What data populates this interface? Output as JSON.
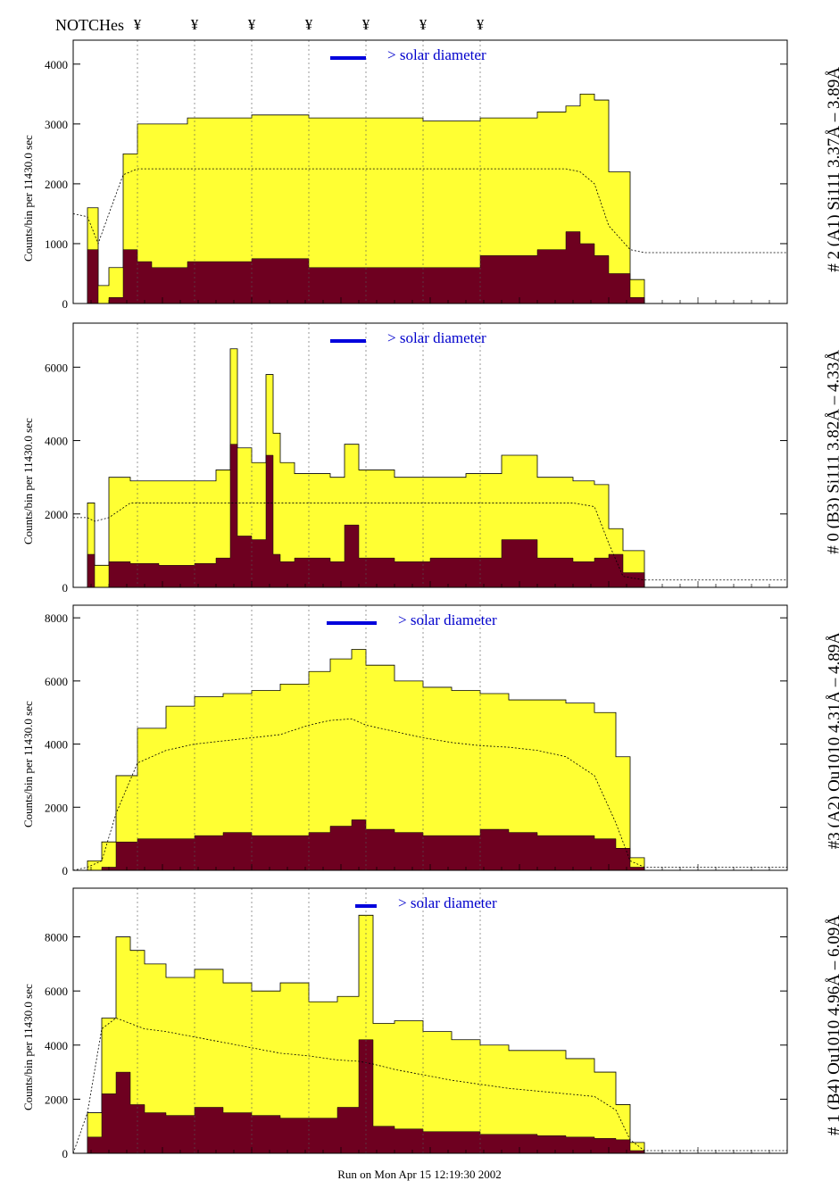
{
  "header": {
    "notch_title": "NOTCHes",
    "notch_symbol": "¥",
    "notch_positions": [
      0.09,
      0.17,
      0.25,
      0.33,
      0.41,
      0.49,
      0.57
    ]
  },
  "footer": {
    "run_on": "Run on Mon Apr 15 12:19:30 2002"
  },
  "colors": {
    "total": "#ffff33",
    "line": "#6e0020",
    "solar": "#0000dd",
    "edge": "#000000"
  },
  "chart_data": [
    {
      "type": "area",
      "label": "# 2 (A1) Si111  3.37Å – 3.89Å",
      "ylabel": "Counts/bin per  11430.0 sec",
      "solar_text": "> solar diameter",
      "ylim": [
        0,
        4400
      ],
      "yticks": [
        0,
        1000,
        2000,
        3000,
        4000
      ],
      "ytick_labels": [
        "0",
        "1000",
        "2000",
        "3000",
        "4000"
      ],
      "x": [
        0.0,
        0.02,
        0.035,
        0.05,
        0.07,
        0.09,
        0.11,
        0.16,
        0.25,
        0.33,
        0.41,
        0.49,
        0.57,
        0.65,
        0.69,
        0.71,
        0.73,
        0.75,
        0.78,
        0.8
      ],
      "total": [
        0,
        1600,
        300,
        600,
        2500,
        3000,
        3000,
        3100,
        3150,
        3100,
        3100,
        3050,
        3100,
        3200,
        3300,
        3500,
        3400,
        2200,
        400,
        0
      ],
      "line": [
        0,
        900,
        0,
        100,
        900,
        700,
        600,
        700,
        750,
        600,
        600,
        600,
        800,
        900,
        1200,
        1000,
        800,
        500,
        100,
        0
      ],
      "model": [
        1500,
        1450,
        1000,
        1500,
        2150,
        2250,
        2250,
        2250,
        2250,
        2250,
        2250,
        2250,
        2250,
        2250,
        2250,
        2200,
        2000,
        1300,
        900,
        850
      ],
      "solar_bar": [
        0.36,
        0.41
      ]
    },
    {
      "type": "area",
      "label": "# 0 (B3) Si111  3.82Å – 4.33Å",
      "ylabel": "Counts/bin per  11430.0 sec",
      "solar_text": "> solar diameter",
      "ylim": [
        0,
        7200
      ],
      "yticks": [
        0,
        2000,
        4000,
        6000
      ],
      "ytick_labels": [
        "0",
        "2000",
        "4000",
        "6000"
      ],
      "x": [
        0.0,
        0.02,
        0.03,
        0.05,
        0.08,
        0.12,
        0.17,
        0.2,
        0.22,
        0.23,
        0.25,
        0.27,
        0.28,
        0.29,
        0.31,
        0.36,
        0.38,
        0.4,
        0.45,
        0.5,
        0.55,
        0.6,
        0.65,
        0.7,
        0.73,
        0.75,
        0.77,
        0.8
      ],
      "total": [
        0,
        2300,
        600,
        3000,
        2900,
        2900,
        2900,
        3200,
        6500,
        3800,
        3400,
        5800,
        4200,
        3400,
        3100,
        3000,
        3900,
        3200,
        3000,
        3000,
        3100,
        3600,
        3000,
        2900,
        2800,
        1600,
        1000,
        0
      ],
      "line": [
        0,
        900,
        0,
        700,
        650,
        600,
        650,
        800,
        3900,
        1400,
        1300,
        3600,
        900,
        700,
        800,
        700,
        1700,
        800,
        700,
        800,
        800,
        1300,
        800,
        700,
        800,
        900,
        400,
        0
      ],
      "model": [
        1900,
        1900,
        1800,
        1900,
        2300,
        2300,
        2300,
        2300,
        2300,
        2300,
        2300,
        2300,
        2300,
        2300,
        2300,
        2300,
        2300,
        2300,
        2300,
        2300,
        2300,
        2300,
        2300,
        2300,
        2200,
        1200,
        300,
        200
      ],
      "solar_bar": [
        0.36,
        0.41
      ]
    },
    {
      "type": "area",
      "label": "#3 (A2) Qu1010  4.31Å – 4.89Å",
      "ylabel": "Counts/bin per  11430.0 sec",
      "solar_text": "> solar diameter",
      "ylim": [
        0,
        8400
      ],
      "yticks": [
        0,
        2000,
        4000,
        6000,
        8000
      ],
      "ytick_labels": [
        "0",
        "2000",
        "4000",
        "6000",
        "8000"
      ],
      "x": [
        0.0,
        0.02,
        0.04,
        0.06,
        0.09,
        0.13,
        0.17,
        0.21,
        0.25,
        0.29,
        0.33,
        0.36,
        0.39,
        0.41,
        0.45,
        0.49,
        0.53,
        0.57,
        0.61,
        0.65,
        0.69,
        0.73,
        0.76,
        0.78,
        0.8
      ],
      "total": [
        0,
        300,
        900,
        3000,
        4500,
        5200,
        5500,
        5600,
        5700,
        5900,
        6300,
        6700,
        7000,
        6500,
        6000,
        5800,
        5700,
        5600,
        5400,
        5400,
        5300,
        5000,
        3600,
        400,
        0
      ],
      "line": [
        0,
        0,
        100,
        900,
        1000,
        1000,
        1100,
        1200,
        1100,
        1100,
        1200,
        1400,
        1600,
        1300,
        1200,
        1100,
        1100,
        1300,
        1200,
        1100,
        1100,
        1000,
        700,
        100,
        0
      ],
      "model": [
        0,
        100,
        300,
        1800,
        3400,
        3800,
        4000,
        4100,
        4200,
        4300,
        4600,
        4750,
        4800,
        4600,
        4400,
        4200,
        4050,
        3950,
        3900,
        3800,
        3600,
        3000,
        1500,
        300,
        100
      ],
      "solar_bar": [
        0.355,
        0.425
      ]
    },
    {
      "type": "area",
      "label": "# 1 (B4) Qu1010 4.96Å – 6.09Å",
      "ylabel": "Counts/bin per  11430.0 sec",
      "solar_text": "> solar diameter",
      "ylim": [
        0,
        9800
      ],
      "yticks": [
        0,
        2000,
        4000,
        6000,
        8000
      ],
      "ytick_labels": [
        "0",
        "2000",
        "4000",
        "6000",
        "8000"
      ],
      "x": [
        0.0,
        0.02,
        0.04,
        0.06,
        0.08,
        0.1,
        0.13,
        0.17,
        0.21,
        0.25,
        0.29,
        0.33,
        0.37,
        0.4,
        0.42,
        0.45,
        0.49,
        0.53,
        0.57,
        0.61,
        0.65,
        0.69,
        0.73,
        0.76,
        0.78,
        0.8
      ],
      "total": [
        0,
        1500,
        5000,
        8000,
        7500,
        7000,
        6500,
        6800,
        6300,
        6000,
        6300,
        5600,
        5800,
        8800,
        4800,
        4900,
        4500,
        4200,
        4000,
        3800,
        3800,
        3500,
        3000,
        1800,
        400,
        0
      ],
      "line": [
        0,
        600,
        2200,
        3000,
        1800,
        1500,
        1400,
        1700,
        1500,
        1400,
        1300,
        1300,
        1700,
        4200,
        1000,
        900,
        800,
        800,
        700,
        700,
        650,
        600,
        550,
        500,
        100,
        0
      ],
      "model": [
        0,
        1500,
        4600,
        5000,
        4800,
        4600,
        4500,
        4300,
        4100,
        3900,
        3700,
        3600,
        3450,
        3400,
        3300,
        3100,
        2900,
        2700,
        2550,
        2400,
        2300,
        2200,
        2100,
        1600,
        500,
        100
      ],
      "solar_bar": [
        0.395,
        0.425
      ]
    }
  ]
}
